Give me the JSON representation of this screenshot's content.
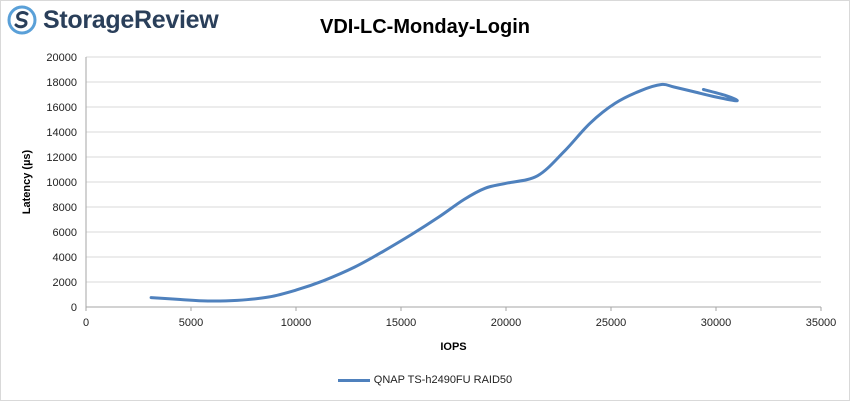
{
  "brand": {
    "name": "StorageReview",
    "logo_color": "#2a3f5a",
    "accent": "#5aa0d8"
  },
  "chart_data": {
    "type": "line",
    "title": "VDI-LC-Monday-Login",
    "xlabel": "IOPS",
    "ylabel": "Latency (µs)",
    "xlim": [
      0,
      35000
    ],
    "ylim": [
      0,
      20000
    ],
    "xticks": [
      0,
      5000,
      10000,
      15000,
      20000,
      25000,
      30000,
      35000
    ],
    "yticks": [
      0,
      2000,
      4000,
      6000,
      8000,
      10000,
      12000,
      14000,
      16000,
      18000,
      20000
    ],
    "grid": "horizontal",
    "legend_position": "bottom",
    "series": [
      {
        "name": "QNAP TS-h2490FU RAID50",
        "color": "#4f81bd",
        "x": [
          3100,
          4500,
          5800,
          7200,
          8700,
          10000,
          11300,
          12800,
          14200,
          15500,
          16800,
          18000,
          19000,
          20000,
          21500,
          22800,
          24000,
          25200,
          26400,
          27400,
          28000,
          29000,
          30000,
          31000,
          30500,
          29400
        ],
        "y": [
          750,
          600,
          480,
          530,
          800,
          1350,
          2100,
          3200,
          4500,
          5800,
          7200,
          8600,
          9500,
          9900,
          10500,
          12500,
          14700,
          16300,
          17300,
          17800,
          17600,
          17200,
          16800,
          16500,
          16900,
          17400
        ]
      }
    ]
  }
}
